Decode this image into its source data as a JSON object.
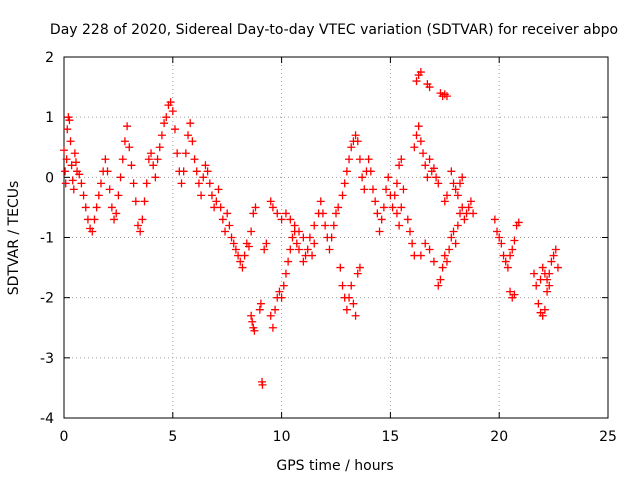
{
  "chart_data": {
    "type": "scatter",
    "title": "Day 228 of 2020, Sidereal Day-to-day VTEC variation (SDTVAR) for receiver abpo",
    "xlabel": "GPS time / hours",
    "ylabel": "SDTVAR / TECUs",
    "xlim": [
      0,
      25
    ],
    "ylim": [
      -4,
      2
    ],
    "xticks": [
      0,
      5,
      10,
      15,
      20,
      25
    ],
    "yticks": [
      -4,
      -3,
      -2,
      -1,
      0,
      1,
      2
    ],
    "grid": true,
    "marker": "+",
    "color": "#ff0000",
    "series": [
      {
        "name": "SDTVAR",
        "points": [
          [
            0.0,
            0.45
          ],
          [
            0.05,
            0.1
          ],
          [
            0.08,
            -0.1
          ],
          [
            0.12,
            0.3
          ],
          [
            0.15,
            0.8
          ],
          [
            0.2,
            1.0
          ],
          [
            0.25,
            0.95
          ],
          [
            0.3,
            0.6
          ],
          [
            0.35,
            0.2
          ],
          [
            0.4,
            -0.05
          ],
          [
            0.45,
            -0.2
          ],
          [
            0.5,
            0.4
          ],
          [
            0.55,
            0.25
          ],
          [
            0.6,
            0.1
          ],
          [
            0.7,
            0.05
          ],
          [
            0.8,
            -0.1
          ],
          [
            0.9,
            -0.3
          ],
          [
            1.0,
            -0.5
          ],
          [
            1.1,
            -0.7
          ],
          [
            1.2,
            -0.85
          ],
          [
            1.3,
            -0.9
          ],
          [
            1.4,
            -0.7
          ],
          [
            1.5,
            -0.5
          ],
          [
            1.6,
            -0.3
          ],
          [
            1.7,
            -0.1
          ],
          [
            1.8,
            0.1
          ],
          [
            1.9,
            0.3
          ],
          [
            2.0,
            0.1
          ],
          [
            2.1,
            -0.2
          ],
          [
            2.2,
            -0.5
          ],
          [
            2.3,
            -0.7
          ],
          [
            2.4,
            -0.6
          ],
          [
            2.5,
            -0.3
          ],
          [
            2.6,
            0.0
          ],
          [
            2.7,
            0.3
          ],
          [
            2.8,
            0.6
          ],
          [
            2.9,
            0.85
          ],
          [
            3.0,
            0.5
          ],
          [
            3.1,
            0.2
          ],
          [
            3.2,
            -0.1
          ],
          [
            3.3,
            -0.4
          ],
          [
            3.4,
            -0.8
          ],
          [
            3.5,
            -0.9
          ],
          [
            3.6,
            -0.7
          ],
          [
            3.7,
            -0.4
          ],
          [
            3.8,
            -0.1
          ],
          [
            3.9,
            0.3
          ],
          [
            4.0,
            0.4
          ],
          [
            4.1,
            0.2
          ],
          [
            4.2,
            0.0
          ],
          [
            4.3,
            0.3
          ],
          [
            4.4,
            0.5
          ],
          [
            4.5,
            0.7
          ],
          [
            4.6,
            0.9
          ],
          [
            4.7,
            1.0
          ],
          [
            4.8,
            1.2
          ],
          [
            4.9,
            1.25
          ],
          [
            5.0,
            1.1
          ],
          [
            5.1,
            0.8
          ],
          [
            5.2,
            0.4
          ],
          [
            5.3,
            0.1
          ],
          [
            5.4,
            -0.1
          ],
          [
            5.5,
            0.1
          ],
          [
            5.6,
            0.4
          ],
          [
            5.7,
            0.7
          ],
          [
            5.8,
            0.9
          ],
          [
            5.9,
            0.6
          ],
          [
            6.0,
            0.3
          ],
          [
            6.1,
            0.1
          ],
          [
            6.2,
            -0.1
          ],
          [
            6.3,
            -0.3
          ],
          [
            6.4,
            0.0
          ],
          [
            6.5,
            0.2
          ],
          [
            6.6,
            0.1
          ],
          [
            6.7,
            -0.1
          ],
          [
            6.8,
            -0.3
          ],
          [
            6.9,
            -0.5
          ],
          [
            7.0,
            -0.4
          ],
          [
            7.1,
            -0.2
          ],
          [
            7.2,
            -0.5
          ],
          [
            7.3,
            -0.7
          ],
          [
            7.4,
            -0.9
          ],
          [
            7.5,
            -0.6
          ],
          [
            7.6,
            -0.8
          ],
          [
            7.7,
            -1.0
          ],
          [
            7.8,
            -1.1
          ],
          [
            7.9,
            -1.2
          ],
          [
            8.0,
            -1.3
          ],
          [
            8.1,
            -1.4
          ],
          [
            8.2,
            -1.5
          ],
          [
            8.3,
            -1.3
          ],
          [
            8.4,
            -1.1
          ],
          [
            8.5,
            -1.15
          ],
          [
            8.6,
            -0.9
          ],
          [
            8.7,
            -0.6
          ],
          [
            8.8,
            -0.5
          ],
          [
            8.6,
            -2.3
          ],
          [
            8.65,
            -2.4
          ],
          [
            8.7,
            -2.5
          ],
          [
            8.75,
            -2.55
          ],
          [
            9.0,
            -2.2
          ],
          [
            9.05,
            -2.1
          ],
          [
            9.1,
            -3.4
          ],
          [
            9.12,
            -3.45
          ],
          [
            9.2,
            -1.2
          ],
          [
            9.3,
            -1.1
          ],
          [
            9.5,
            -2.3
          ],
          [
            9.6,
            -2.5
          ],
          [
            9.7,
            -2.2
          ],
          [
            9.8,
            -2.0
          ],
          [
            9.9,
            -1.9
          ],
          [
            10.0,
            -2.0
          ],
          [
            10.1,
            -1.8
          ],
          [
            10.2,
            -1.6
          ],
          [
            10.3,
            -1.4
          ],
          [
            10.4,
            -1.2
          ],
          [
            10.5,
            -1.0
          ],
          [
            10.6,
            -0.9
          ],
          [
            10.7,
            -1.1
          ],
          [
            10.8,
            -1.2
          ],
          [
            9.5,
            -0.4
          ],
          [
            9.6,
            -0.5
          ],
          [
            9.8,
            -0.6
          ],
          [
            10.0,
            -0.7
          ],
          [
            10.2,
            -0.6
          ],
          [
            10.4,
            -0.7
          ],
          [
            10.6,
            -0.8
          ],
          [
            10.8,
            -0.9
          ],
          [
            11.0,
            -1.0
          ],
          [
            11.2,
            -1.2
          ],
          [
            11.4,
            -1.3
          ],
          [
            11.5,
            -1.1
          ],
          [
            11.0,
            -1.4
          ],
          [
            11.1,
            -1.3
          ],
          [
            11.3,
            -1.0
          ],
          [
            11.5,
            -0.8
          ],
          [
            11.7,
            -0.6
          ],
          [
            11.8,
            -0.4
          ],
          [
            11.9,
            -0.6
          ],
          [
            12.0,
            -0.8
          ],
          [
            12.1,
            -1.0
          ],
          [
            12.2,
            -1.2
          ],
          [
            12.3,
            -1.0
          ],
          [
            12.4,
            -0.8
          ],
          [
            12.5,
            -0.6
          ],
          [
            12.6,
            -0.5
          ],
          [
            12.7,
            -1.5
          ],
          [
            12.8,
            -1.8
          ],
          [
            12.9,
            -2.0
          ],
          [
            13.0,
            -2.2
          ],
          [
            13.1,
            -2.0
          ],
          [
            13.2,
            -1.8
          ],
          [
            13.3,
            -2.1
          ],
          [
            13.4,
            -2.3
          ],
          [
            13.5,
            -1.6
          ],
          [
            13.6,
            -1.5
          ],
          [
            12.8,
            -0.3
          ],
          [
            12.9,
            -0.1
          ],
          [
            13.0,
            0.1
          ],
          [
            13.1,
            0.3
          ],
          [
            13.2,
            0.5
          ],
          [
            13.3,
            0.6
          ],
          [
            13.4,
            0.7
          ],
          [
            13.5,
            0.6
          ],
          [
            13.6,
            0.3
          ],
          [
            13.7,
            0.0
          ],
          [
            13.8,
            -0.2
          ],
          [
            13.9,
            0.1
          ],
          [
            14.0,
            0.3
          ],
          [
            14.1,
            0.1
          ],
          [
            14.2,
            -0.2
          ],
          [
            14.3,
            -0.4
          ],
          [
            14.4,
            -0.6
          ],
          [
            14.5,
            -0.9
          ],
          [
            14.6,
            -0.7
          ],
          [
            14.7,
            -0.5
          ],
          [
            14.8,
            -0.2
          ],
          [
            14.9,
            0.0
          ],
          [
            15.0,
            -0.3
          ],
          [
            15.1,
            -0.5
          ],
          [
            15.2,
            -0.3
          ],
          [
            15.3,
            -0.1
          ],
          [
            15.4,
            0.2
          ],
          [
            15.5,
            0.3
          ],
          [
            15.3,
            -0.6
          ],
          [
            15.4,
            -0.8
          ],
          [
            15.5,
            -0.5
          ],
          [
            15.6,
            -0.2
          ],
          [
            15.8,
            -0.7
          ],
          [
            15.9,
            -0.9
          ],
          [
            16.0,
            -1.1
          ],
          [
            16.1,
            -1.3
          ],
          [
            16.1,
            0.5
          ],
          [
            16.2,
            0.7
          ],
          [
            16.3,
            0.85
          ],
          [
            16.4,
            0.6
          ],
          [
            16.5,
            0.4
          ],
          [
            16.6,
            0.2
          ],
          [
            16.7,
            0.0
          ],
          [
            16.8,
            0.3
          ],
          [
            16.9,
            0.1
          ],
          [
            17.0,
            0.15
          ],
          [
            17.1,
            0.0
          ],
          [
            17.2,
            -0.1
          ],
          [
            16.2,
            1.6
          ],
          [
            16.3,
            1.7
          ],
          [
            16.4,
            1.75
          ],
          [
            16.7,
            1.55
          ],
          [
            16.8,
            1.5
          ],
          [
            17.3,
            1.4
          ],
          [
            17.4,
            1.35
          ],
          [
            17.5,
            1.38
          ],
          [
            17.6,
            1.35
          ],
          [
            16.4,
            -1.3
          ],
          [
            16.6,
            -1.1
          ],
          [
            16.8,
            -1.2
          ],
          [
            17.0,
            -1.4
          ],
          [
            17.2,
            -1.8
          ],
          [
            17.3,
            -1.7
          ],
          [
            17.4,
            -1.5
          ],
          [
            17.5,
            -1.3
          ],
          [
            17.6,
            -1.4
          ],
          [
            17.7,
            -1.2
          ],
          [
            17.8,
            -1.0
          ],
          [
            17.9,
            -0.9
          ],
          [
            18.0,
            -1.1
          ],
          [
            18.1,
            -0.8
          ],
          [
            18.2,
            -0.6
          ],
          [
            18.3,
            -0.5
          ],
          [
            18.4,
            -0.7
          ],
          [
            18.5,
            -0.6
          ],
          [
            18.6,
            -0.5
          ],
          [
            18.7,
            -0.4
          ],
          [
            18.8,
            -0.6
          ],
          [
            17.8,
            0.1
          ],
          [
            17.9,
            -0.1
          ],
          [
            18.0,
            -0.2
          ],
          [
            18.1,
            -0.3
          ],
          [
            18.2,
            -0.1
          ],
          [
            18.3,
            0.0
          ],
          [
            17.6,
            -0.3
          ],
          [
            17.5,
            -0.4
          ],
          [
            19.8,
            -0.7
          ],
          [
            19.9,
            -0.9
          ],
          [
            20.0,
            -1.0
          ],
          [
            20.1,
            -1.1
          ],
          [
            20.2,
            -1.3
          ],
          [
            20.3,
            -1.4
          ],
          [
            20.4,
            -1.5
          ],
          [
            20.5,
            -1.3
          ],
          [
            20.6,
            -1.2
          ],
          [
            20.7,
            -1.05
          ],
          [
            20.8,
            -0.8
          ],
          [
            20.9,
            -0.75
          ],
          [
            20.5,
            -1.9
          ],
          [
            20.6,
            -2.0
          ],
          [
            20.7,
            -1.95
          ],
          [
            21.6,
            -1.6
          ],
          [
            21.7,
            -1.8
          ],
          [
            21.8,
            -2.1
          ],
          [
            21.9,
            -2.25
          ],
          [
            22.0,
            -2.3
          ],
          [
            22.1,
            -2.2
          ],
          [
            22.2,
            -1.9
          ],
          [
            22.3,
            -1.6
          ],
          [
            22.4,
            -1.4
          ],
          [
            22.5,
            -1.3
          ],
          [
            22.6,
            -1.2
          ],
          [
            22.7,
            -1.5
          ],
          [
            22.1,
            -1.6
          ],
          [
            22.2,
            -1.7
          ],
          [
            22.3,
            -1.8
          ],
          [
            22.0,
            -1.5
          ],
          [
            21.9,
            -1.7
          ]
        ]
      }
    ]
  }
}
